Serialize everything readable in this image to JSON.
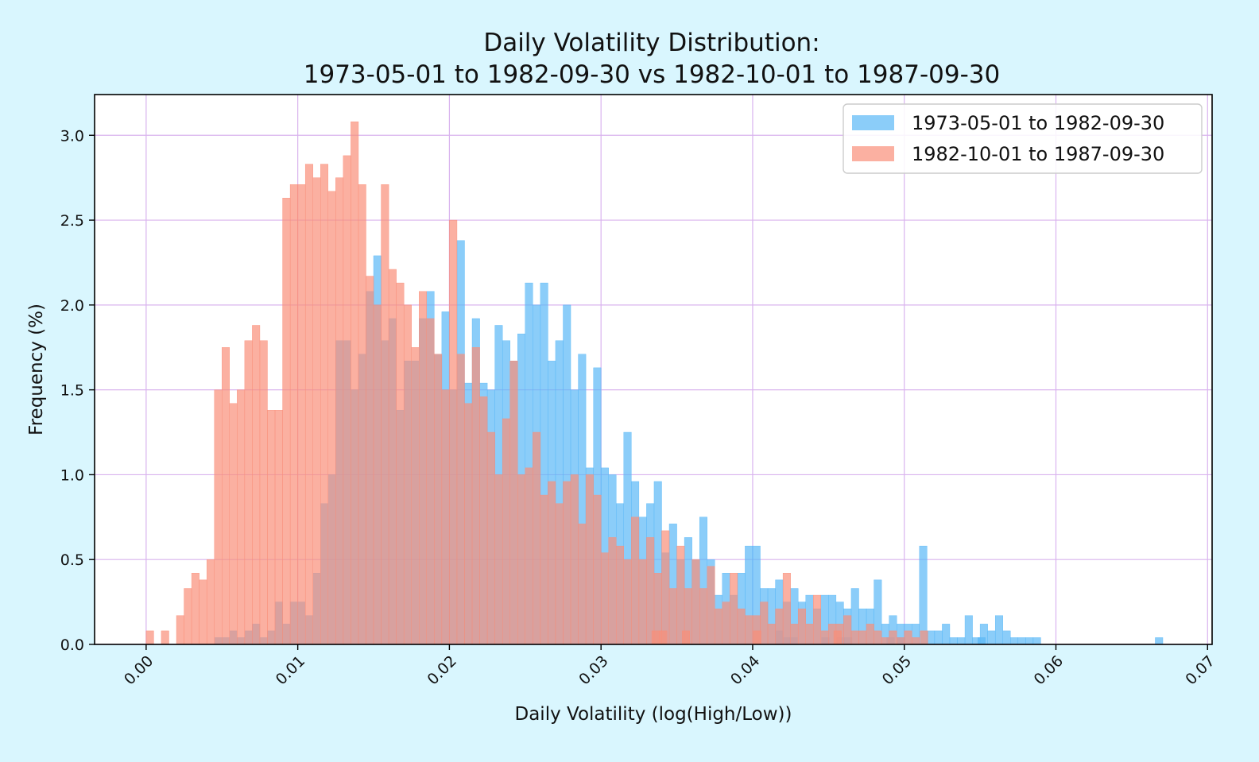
{
  "chart_data": {
    "type": "bar",
    "title_lines": [
      "Daily Volatility Distribution:",
      "1973-05-01 to 1982-09-30 vs 1982-10-01 to 1987-09-30"
    ],
    "xlabel": "Daily Volatility (log(High/Low))",
    "ylabel": "Frequency (%)",
    "xlim": [
      -0.0034,
      0.0703
    ],
    "ylim": [
      0,
      3.24
    ],
    "xticks": [
      "0.00",
      "0.01",
      "0.02",
      "0.03",
      "0.04",
      "0.05",
      "0.06",
      "0.07"
    ],
    "yticks": [
      "0.0",
      "0.5",
      "1.0",
      "1.5",
      "2.0",
      "2.5",
      "3.0"
    ],
    "grid": true,
    "legend_position": "top-right",
    "bin_width": 0.0005,
    "series": [
      {
        "name": "1973-05-01 to 1982-09-30",
        "color": "#5ab8f7",
        "bins": [
          [
            0.00475,
            0.04
          ],
          [
            0.00525,
            0.04
          ],
          [
            0.00575,
            0.08
          ],
          [
            0.00625,
            0.04
          ],
          [
            0.00675,
            0.08
          ],
          [
            0.00725,
            0.12
          ],
          [
            0.00775,
            0.04
          ],
          [
            0.00825,
            0.08
          ],
          [
            0.00875,
            0.25
          ],
          [
            0.00925,
            0.12
          ],
          [
            0.00975,
            0.25
          ],
          [
            0.01025,
            0.25
          ],
          [
            0.01075,
            0.17
          ],
          [
            0.01125,
            0.42
          ],
          [
            0.01175,
            0.83
          ],
          [
            0.01225,
            1.0
          ],
          [
            0.01275,
            1.79
          ],
          [
            0.01325,
            1.79
          ],
          [
            0.01375,
            1.5
          ],
          [
            0.01425,
            1.71
          ],
          [
            0.01475,
            2.08
          ],
          [
            0.01525,
            2.29
          ],
          [
            0.01575,
            1.79
          ],
          [
            0.01625,
            1.92
          ],
          [
            0.01675,
            1.38
          ],
          [
            0.01725,
            1.67
          ],
          [
            0.01775,
            1.67
          ],
          [
            0.01825,
            1.92
          ],
          [
            0.01875,
            2.08
          ],
          [
            0.01925,
            1.71
          ],
          [
            0.01975,
            1.96
          ],
          [
            0.02025,
            1.5
          ],
          [
            0.02075,
            2.38
          ],
          [
            0.02125,
            1.54
          ],
          [
            0.02175,
            1.92
          ],
          [
            0.02225,
            1.54
          ],
          [
            0.02275,
            1.5
          ],
          [
            0.02325,
            1.88
          ],
          [
            0.02375,
            1.79
          ],
          [
            0.02425,
            1.67
          ],
          [
            0.02475,
            1.83
          ],
          [
            0.02525,
            2.13
          ],
          [
            0.02575,
            2.0
          ],
          [
            0.02625,
            2.13
          ],
          [
            0.02675,
            1.67
          ],
          [
            0.02725,
            1.79
          ],
          [
            0.02775,
            2.0
          ],
          [
            0.02825,
            1.5
          ],
          [
            0.02875,
            1.71
          ],
          [
            0.02925,
            1.04
          ],
          [
            0.02975,
            1.63
          ],
          [
            0.03025,
            1.04
          ],
          [
            0.03075,
            1.0
          ],
          [
            0.03125,
            0.83
          ],
          [
            0.03175,
            1.25
          ],
          [
            0.03225,
            0.96
          ],
          [
            0.03275,
            0.75
          ],
          [
            0.03325,
            0.83
          ],
          [
            0.03375,
            0.96
          ],
          [
            0.03425,
            0.54
          ],
          [
            0.03475,
            0.71
          ],
          [
            0.03525,
            0.5
          ],
          [
            0.03575,
            0.63
          ],
          [
            0.03625,
            0.5
          ],
          [
            0.03675,
            0.75
          ],
          [
            0.03725,
            0.5
          ],
          [
            0.03775,
            0.29
          ],
          [
            0.03825,
            0.42
          ],
          [
            0.03875,
            0.29
          ],
          [
            0.03925,
            0.42
          ],
          [
            0.03975,
            0.58
          ],
          [
            0.04025,
            0.58
          ],
          [
            0.04075,
            0.33
          ],
          [
            0.04125,
            0.33
          ],
          [
            0.04175,
            0.38
          ],
          [
            0.04225,
            0.25
          ],
          [
            0.04275,
            0.33
          ],
          [
            0.04325,
            0.25
          ],
          [
            0.04375,
            0.29
          ],
          [
            0.04425,
            0.21
          ],
          [
            0.04475,
            0.29
          ],
          [
            0.04525,
            0.29
          ],
          [
            0.04575,
            0.25
          ],
          [
            0.04625,
            0.21
          ],
          [
            0.04675,
            0.33
          ],
          [
            0.04725,
            0.21
          ],
          [
            0.04775,
            0.21
          ],
          [
            0.04825,
            0.38
          ],
          [
            0.04875,
            0.12
          ],
          [
            0.04925,
            0.17
          ],
          [
            0.04975,
            0.12
          ],
          [
            0.05025,
            0.12
          ],
          [
            0.05075,
            0.12
          ],
          [
            0.05125,
            0.58
          ],
          [
            0.05175,
            0.08
          ],
          [
            0.05225,
            0.08
          ],
          [
            0.05275,
            0.12
          ],
          [
            0.05325,
            0.04
          ],
          [
            0.05375,
            0.04
          ],
          [
            0.05425,
            0.17
          ],
          [
            0.05475,
            0.04
          ],
          [
            0.05525,
            0.12
          ],
          [
            0.05575,
            0.08
          ],
          [
            0.05625,
            0.17
          ],
          [
            0.05675,
            0.08
          ],
          [
            0.05725,
            0.04
          ],
          [
            0.05775,
            0.04
          ],
          [
            0.05825,
            0.04
          ],
          [
            0.05875,
            0.04
          ],
          [
            0.04175,
            0.08
          ],
          [
            0.04225,
            0.04
          ],
          [
            0.0427,
            0.04
          ],
          [
            0.0448,
            0.04
          ],
          [
            0.0458,
            0.04
          ],
          [
            0.0463,
            0.04
          ],
          [
            0.0491,
            0.04
          ],
          [
            0.0498,
            0.04
          ],
          [
            0.0551,
            0.04
          ],
          [
            0.0668,
            0.04
          ]
        ]
      },
      {
        "name": "1982-10-01 to 1987-09-30",
        "color": "#fa8e79",
        "bins": [
          [
            0.00025,
            0.08
          ],
          [
            0.00125,
            0.08
          ],
          [
            0.00225,
            0.17
          ],
          [
            0.00275,
            0.33
          ],
          [
            0.00325,
            0.42
          ],
          [
            0.00375,
            0.38
          ],
          [
            0.00425,
            0.5
          ],
          [
            0.00475,
            1.5
          ],
          [
            0.00525,
            1.75
          ],
          [
            0.00575,
            1.42
          ],
          [
            0.00625,
            1.5
          ],
          [
            0.00675,
            1.79
          ],
          [
            0.00725,
            1.88
          ],
          [
            0.00775,
            1.79
          ],
          [
            0.00825,
            1.38
          ],
          [
            0.00875,
            1.38
          ],
          [
            0.00925,
            2.63
          ],
          [
            0.00975,
            2.71
          ],
          [
            0.01025,
            2.71
          ],
          [
            0.01075,
            2.83
          ],
          [
            0.01125,
            2.75
          ],
          [
            0.01175,
            2.83
          ],
          [
            0.01225,
            2.67
          ],
          [
            0.01275,
            2.75
          ],
          [
            0.01325,
            2.88
          ],
          [
            0.01375,
            3.08
          ],
          [
            0.01425,
            2.71
          ],
          [
            0.01475,
            2.17
          ],
          [
            0.01525,
            2.0
          ],
          [
            0.01575,
            2.71
          ],
          [
            0.01625,
            2.21
          ],
          [
            0.01675,
            2.13
          ],
          [
            0.01725,
            2.0
          ],
          [
            0.01775,
            1.75
          ],
          [
            0.01825,
            2.08
          ],
          [
            0.01875,
            1.92
          ],
          [
            0.01925,
            1.71
          ],
          [
            0.01975,
            1.5
          ],
          [
            0.02025,
            2.5
          ],
          [
            0.02075,
            1.71
          ],
          [
            0.02125,
            1.42
          ],
          [
            0.02175,
            1.75
          ],
          [
            0.02225,
            1.46
          ],
          [
            0.02275,
            1.25
          ],
          [
            0.02325,
            1.0
          ],
          [
            0.02375,
            1.33
          ],
          [
            0.02425,
            1.67
          ],
          [
            0.02475,
            1.0
          ],
          [
            0.02525,
            1.04
          ],
          [
            0.02575,
            1.25
          ],
          [
            0.02625,
            0.88
          ],
          [
            0.02675,
            0.96
          ],
          [
            0.02725,
            0.83
          ],
          [
            0.02775,
            0.96
          ],
          [
            0.02825,
            1.0
          ],
          [
            0.02875,
            0.71
          ],
          [
            0.02925,
            1.0
          ],
          [
            0.02975,
            0.88
          ],
          [
            0.03025,
            0.54
          ],
          [
            0.03075,
            0.63
          ],
          [
            0.03125,
            0.58
          ],
          [
            0.03175,
            0.5
          ],
          [
            0.03225,
            0.75
          ],
          [
            0.03275,
            0.5
          ],
          [
            0.03325,
            0.63
          ],
          [
            0.03375,
            0.42
          ],
          [
            0.03425,
            0.67
          ],
          [
            0.03475,
            0.33
          ],
          [
            0.03525,
            0.58
          ],
          [
            0.03575,
            0.33
          ],
          [
            0.03625,
            0.5
          ],
          [
            0.03675,
            0.33
          ],
          [
            0.03725,
            0.46
          ],
          [
            0.03775,
            0.21
          ],
          [
            0.03825,
            0.25
          ],
          [
            0.03875,
            0.42
          ],
          [
            0.03925,
            0.21
          ],
          [
            0.03975,
            0.17
          ],
          [
            0.04025,
            0.17
          ],
          [
            0.04075,
            0.25
          ],
          [
            0.04125,
            0.12
          ],
          [
            0.04175,
            0.21
          ],
          [
            0.04225,
            0.42
          ],
          [
            0.04275,
            0.12
          ],
          [
            0.04325,
            0.21
          ],
          [
            0.04375,
            0.12
          ],
          [
            0.04425,
            0.29
          ],
          [
            0.04475,
            0.08
          ],
          [
            0.04525,
            0.12
          ],
          [
            0.04575,
            0.12
          ],
          [
            0.04625,
            0.17
          ],
          [
            0.04675,
            0.08
          ],
          [
            0.04725,
            0.08
          ],
          [
            0.04775,
            0.12
          ],
          [
            0.04825,
            0.08
          ],
          [
            0.04875,
            0.04
          ],
          [
            0.04925,
            0.08
          ],
          [
            0.04975,
            0.04
          ],
          [
            0.05025,
            0.08
          ],
          [
            0.05075,
            0.04
          ],
          [
            0.0336,
            0.08
          ],
          [
            0.0341,
            0.08
          ],
          [
            0.0356,
            0.08
          ],
          [
            0.0403,
            0.08
          ],
          [
            0.0456,
            0.08
          ],
          [
            0.0513,
            0.08
          ]
        ]
      }
    ]
  }
}
